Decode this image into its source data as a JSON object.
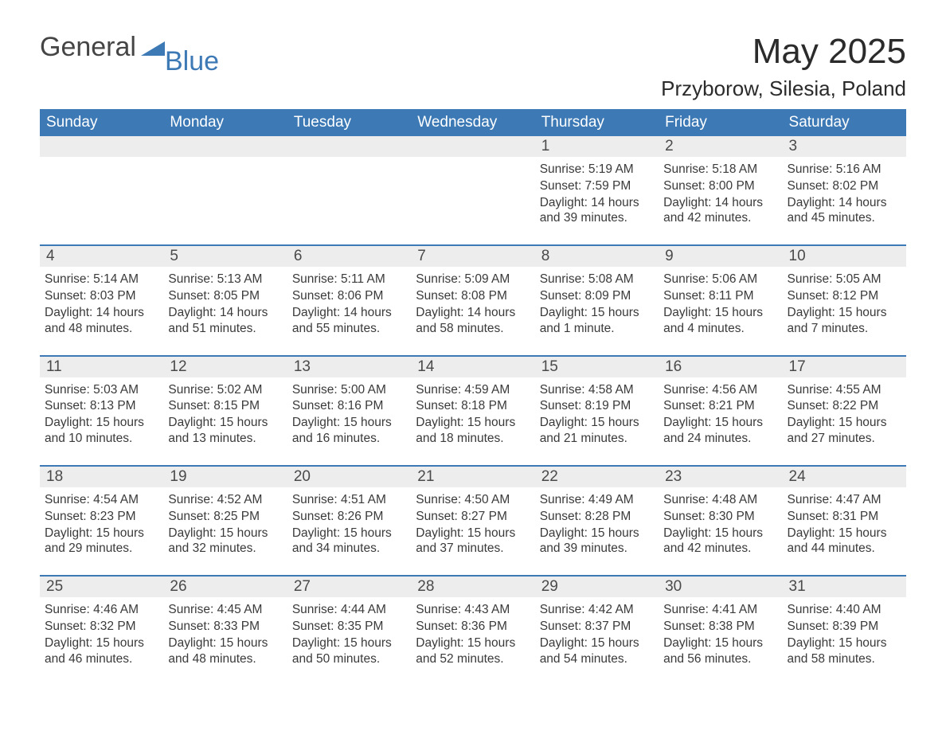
{
  "brand": {
    "part1": "General",
    "part2": "Blue",
    "accent_color": "#3c79b5",
    "text_color": "#454545"
  },
  "title": "May 2025",
  "location": "Przyborow, Silesia, Poland",
  "colors": {
    "header_bg": "#3c79b5",
    "header_text": "#ffffff",
    "daynum_bg": "#ededed",
    "daynum_text": "#4a4a4a",
    "body_text": "#3a3a3a",
    "row_separator": "#3c79b5",
    "page_bg": "#ffffff"
  },
  "fonts": {
    "title_size_pt": 33,
    "location_size_pt": 20,
    "header_size_pt": 14,
    "body_size_pt": 12
  },
  "weekdays": [
    "Sunday",
    "Monday",
    "Tuesday",
    "Wednesday",
    "Thursday",
    "Friday",
    "Saturday"
  ],
  "first_weekday_index": 4,
  "days": [
    {
      "n": 1,
      "sunrise": "5:19 AM",
      "sunset": "7:59 PM",
      "daylight": "14 hours and 39 minutes."
    },
    {
      "n": 2,
      "sunrise": "5:18 AM",
      "sunset": "8:00 PM",
      "daylight": "14 hours and 42 minutes."
    },
    {
      "n": 3,
      "sunrise": "5:16 AM",
      "sunset": "8:02 PM",
      "daylight": "14 hours and 45 minutes."
    },
    {
      "n": 4,
      "sunrise": "5:14 AM",
      "sunset": "8:03 PM",
      "daylight": "14 hours and 48 minutes."
    },
    {
      "n": 5,
      "sunrise": "5:13 AM",
      "sunset": "8:05 PM",
      "daylight": "14 hours and 51 minutes."
    },
    {
      "n": 6,
      "sunrise": "5:11 AM",
      "sunset": "8:06 PM",
      "daylight": "14 hours and 55 minutes."
    },
    {
      "n": 7,
      "sunrise": "5:09 AM",
      "sunset": "8:08 PM",
      "daylight": "14 hours and 58 minutes."
    },
    {
      "n": 8,
      "sunrise": "5:08 AM",
      "sunset": "8:09 PM",
      "daylight": "15 hours and 1 minute."
    },
    {
      "n": 9,
      "sunrise": "5:06 AM",
      "sunset": "8:11 PM",
      "daylight": "15 hours and 4 minutes."
    },
    {
      "n": 10,
      "sunrise": "5:05 AM",
      "sunset": "8:12 PM",
      "daylight": "15 hours and 7 minutes."
    },
    {
      "n": 11,
      "sunrise": "5:03 AM",
      "sunset": "8:13 PM",
      "daylight": "15 hours and 10 minutes."
    },
    {
      "n": 12,
      "sunrise": "5:02 AM",
      "sunset": "8:15 PM",
      "daylight": "15 hours and 13 minutes."
    },
    {
      "n": 13,
      "sunrise": "5:00 AM",
      "sunset": "8:16 PM",
      "daylight": "15 hours and 16 minutes."
    },
    {
      "n": 14,
      "sunrise": "4:59 AM",
      "sunset": "8:18 PM",
      "daylight": "15 hours and 18 minutes."
    },
    {
      "n": 15,
      "sunrise": "4:58 AM",
      "sunset": "8:19 PM",
      "daylight": "15 hours and 21 minutes."
    },
    {
      "n": 16,
      "sunrise": "4:56 AM",
      "sunset": "8:21 PM",
      "daylight": "15 hours and 24 minutes."
    },
    {
      "n": 17,
      "sunrise": "4:55 AM",
      "sunset": "8:22 PM",
      "daylight": "15 hours and 27 minutes."
    },
    {
      "n": 18,
      "sunrise": "4:54 AM",
      "sunset": "8:23 PM",
      "daylight": "15 hours and 29 minutes."
    },
    {
      "n": 19,
      "sunrise": "4:52 AM",
      "sunset": "8:25 PM",
      "daylight": "15 hours and 32 minutes."
    },
    {
      "n": 20,
      "sunrise": "4:51 AM",
      "sunset": "8:26 PM",
      "daylight": "15 hours and 34 minutes."
    },
    {
      "n": 21,
      "sunrise": "4:50 AM",
      "sunset": "8:27 PM",
      "daylight": "15 hours and 37 minutes."
    },
    {
      "n": 22,
      "sunrise": "4:49 AM",
      "sunset": "8:28 PM",
      "daylight": "15 hours and 39 minutes."
    },
    {
      "n": 23,
      "sunrise": "4:48 AM",
      "sunset": "8:30 PM",
      "daylight": "15 hours and 42 minutes."
    },
    {
      "n": 24,
      "sunrise": "4:47 AM",
      "sunset": "8:31 PM",
      "daylight": "15 hours and 44 minutes."
    },
    {
      "n": 25,
      "sunrise": "4:46 AM",
      "sunset": "8:32 PM",
      "daylight": "15 hours and 46 minutes."
    },
    {
      "n": 26,
      "sunrise": "4:45 AM",
      "sunset": "8:33 PM",
      "daylight": "15 hours and 48 minutes."
    },
    {
      "n": 27,
      "sunrise": "4:44 AM",
      "sunset": "8:35 PM",
      "daylight": "15 hours and 50 minutes."
    },
    {
      "n": 28,
      "sunrise": "4:43 AM",
      "sunset": "8:36 PM",
      "daylight": "15 hours and 52 minutes."
    },
    {
      "n": 29,
      "sunrise": "4:42 AM",
      "sunset": "8:37 PM",
      "daylight": "15 hours and 54 minutes."
    },
    {
      "n": 30,
      "sunrise": "4:41 AM",
      "sunset": "8:38 PM",
      "daylight": "15 hours and 56 minutes."
    },
    {
      "n": 31,
      "sunrise": "4:40 AM",
      "sunset": "8:39 PM",
      "daylight": "15 hours and 58 minutes."
    }
  ],
  "labels": {
    "sunrise": "Sunrise:",
    "sunset": "Sunset:",
    "daylight": "Daylight:"
  }
}
